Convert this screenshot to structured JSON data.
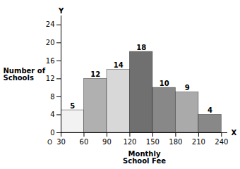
{
  "chart_data": {
    "type": "histogram",
    "bins": [
      30,
      60,
      90,
      120,
      150,
      180,
      210,
      240
    ],
    "values": [
      5,
      12,
      14,
      18,
      10,
      9,
      4
    ],
    "colors": [
      "#f2f2f2",
      "#b0b0b0",
      "#d8d8d8",
      "#707070",
      "#888888",
      "#aaaaaa",
      "#888888"
    ],
    "xlabel": "Monthly\nSchool Fee",
    "ylabel": "Number of\nSchools",
    "xlim": [
      30,
      248
    ],
    "ylim": [
      0,
      26
    ],
    "xticks": [
      30,
      60,
      90,
      120,
      150,
      180,
      210,
      240
    ],
    "yticks": [
      0,
      4,
      8,
      12,
      16,
      20,
      24
    ],
    "data_labels": true,
    "grid": false,
    "annotations": [
      "X",
      "Y",
      "O"
    ]
  }
}
